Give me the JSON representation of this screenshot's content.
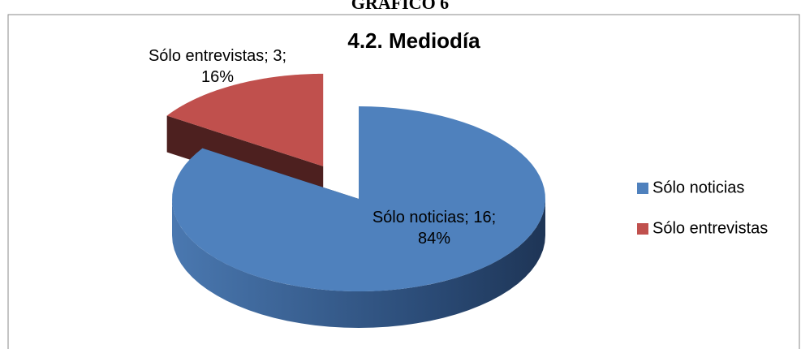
{
  "header": "GRAFICO 6",
  "chart_data": {
    "type": "pie3d",
    "title": "4.2. Mediodía",
    "categories": [
      "Sólo noticias",
      "Sólo entrevistas"
    ],
    "values": [
      16,
      3
    ],
    "value_labels": [
      "Sólo noticias; 16; 84%",
      "Sólo entrevistas; 3; 16%"
    ],
    "colors": [
      "#4f81bd",
      "#c0504d"
    ],
    "exploded": [
      false,
      true
    ],
    "legend": "right"
  }
}
